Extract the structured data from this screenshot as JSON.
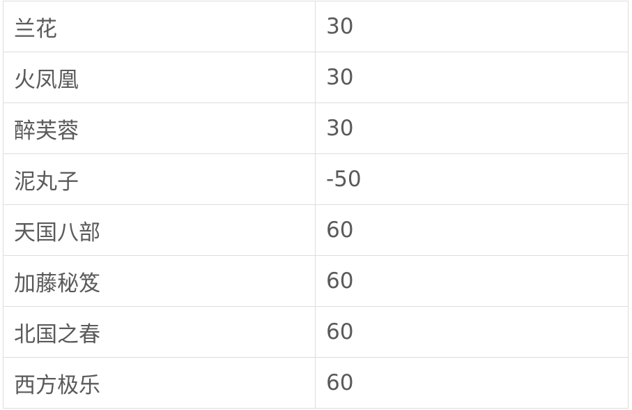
{
  "table": {
    "rows": [
      {
        "name": "兰花",
        "value": "30"
      },
      {
        "name": "火凤凰",
        "value": "30"
      },
      {
        "name": "醉芙蓉",
        "value": "30"
      },
      {
        "name": "泥丸子",
        "value": "-50"
      },
      {
        "name": "天国八部",
        "value": "60"
      },
      {
        "name": "加藤秘笈",
        "value": "60"
      },
      {
        "name": "北国之春",
        "value": "60"
      },
      {
        "name": "西方极乐",
        "value": "60"
      }
    ]
  }
}
